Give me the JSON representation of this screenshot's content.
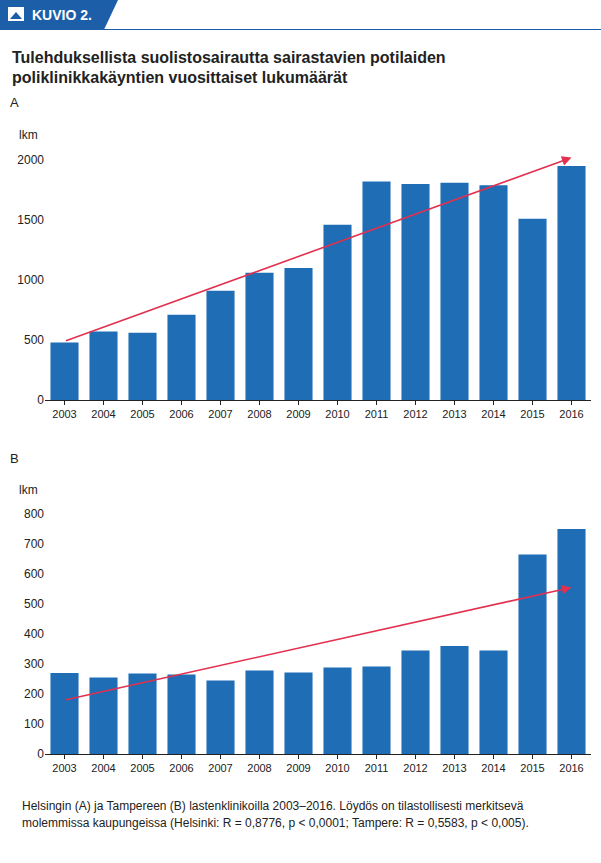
{
  "header": "KUVIO 2.",
  "title": "Tulehduksellista suolistosairautta sairastavien potilaiden poliklinikkakäyntien vuosittaiset lukumäärät",
  "note": "Helsingin (A) ja Tampereen (B) lastenklinikoilla 2003–2016. Löydös on tilastollisesti merkitsevä molemmissa kaupungeissa (Helsinki: R = 0,8776, p < 0,0001; Tampere: R = 0,5583, p < 0,005).",
  "chart_data": [
    {
      "type": "bar",
      "title": "A",
      "y_label": "lkm",
      "categories": [
        "2003",
        "2004",
        "2005",
        "2006",
        "2007",
        "2008",
        "2009",
        "2010",
        "2011",
        "2012",
        "2013",
        "2014",
        "2015",
        "2016"
      ],
      "values": [
        480,
        570,
        560,
        710,
        910,
        1060,
        1100,
        1460,
        1820,
        1800,
        1810,
        1790,
        1510,
        1950
      ],
      "color": "#1f6db5",
      "ylim": [
        0,
        2000
      ],
      "yticks": [
        0,
        500,
        1000,
        1500,
        2000
      ],
      "grid": false,
      "trend": {
        "x": [
          "2003",
          "2016"
        ],
        "y": [
          490,
          2020
        ],
        "color": "#e2304f"
      }
    },
    {
      "type": "bar",
      "title": "B",
      "y_label": "lkm",
      "categories": [
        "2003",
        "2004",
        "2005",
        "2006",
        "2007",
        "2008",
        "2009",
        "2010",
        "2011",
        "2012",
        "2013",
        "2014",
        "2015",
        "2016"
      ],
      "values": [
        270,
        255,
        268,
        265,
        245,
        278,
        272,
        288,
        292,
        345,
        360,
        345,
        665,
        750
      ],
      "color": "#1f6db5",
      "ylim": [
        0,
        800
      ],
      "yticks": [
        0,
        100,
        200,
        300,
        400,
        500,
        600,
        700,
        800
      ],
      "grid": false,
      "trend": {
        "x": [
          "2003",
          "2016"
        ],
        "y": [
          180,
          555
        ],
        "color": "#e2304f"
      }
    }
  ]
}
